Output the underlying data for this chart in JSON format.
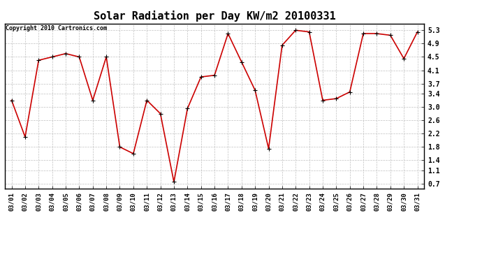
{
  "title": "Solar Radiation per Day KW/m2 20100331",
  "copyright": "Copyright 2010 Cartronics.com",
  "dates": [
    "03/01",
    "03/02",
    "03/03",
    "03/04",
    "03/05",
    "03/06",
    "03/07",
    "03/08",
    "03/09",
    "03/10",
    "03/11",
    "03/12",
    "03/13",
    "03/14",
    "03/15",
    "03/16",
    "03/17",
    "03/18",
    "03/19",
    "03/20",
    "03/21",
    "03/22",
    "03/23",
    "03/24",
    "03/25",
    "03/26",
    "03/27",
    "03/28",
    "03/29",
    "03/30",
    "03/31"
  ],
  "values": [
    3.2,
    2.1,
    4.4,
    4.5,
    4.6,
    4.5,
    3.2,
    4.5,
    1.8,
    1.6,
    3.2,
    2.8,
    0.75,
    2.95,
    3.9,
    3.95,
    5.2,
    4.35,
    3.5,
    1.75,
    4.85,
    5.3,
    5.25,
    3.2,
    3.25,
    3.45,
    5.2,
    5.2,
    5.15,
    4.45,
    5.25
  ],
  "line_color": "#cc0000",
  "marker": "+",
  "marker_color": "#000000",
  "bg_color": "#ffffff",
  "grid_color": "#c0c0c0",
  "yticks": [
    0.7,
    1.1,
    1.4,
    1.8,
    2.2,
    2.6,
    3.0,
    3.4,
    3.7,
    4.1,
    4.5,
    4.9,
    5.3
  ],
  "ylim": [
    0.55,
    5.5
  ],
  "title_fontsize": 11,
  "copyright_fontsize": 6,
  "tick_fontsize": 6.5,
  "ytick_fontsize": 7
}
